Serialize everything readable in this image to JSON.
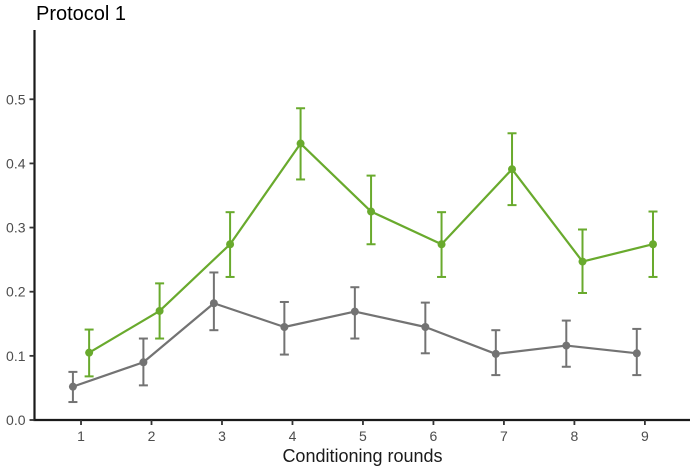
{
  "chart_data": {
    "type": "line",
    "title": "Protocol 1",
    "xlabel": "Conditioning rounds",
    "ylabel": "",
    "x": [
      1,
      2,
      3,
      4,
      5,
      6,
      7,
      8,
      9
    ],
    "xtick_labels": [
      "1",
      "2",
      "3",
      "4",
      "5",
      "6",
      "7",
      "8",
      "9"
    ],
    "yticks": [
      0.0,
      0.1,
      0.2,
      0.3,
      0.4,
      0.5
    ],
    "ytick_labels": [
      "0.0",
      "0.1",
      "0.2",
      "0.3",
      "0.4",
      "0.5"
    ],
    "xlim": [
      0.34,
      9.64
    ],
    "ylim": [
      0,
      0.608
    ],
    "grid": false,
    "legend": "none",
    "marker": "circle",
    "error_bars": true,
    "series": [
      {
        "name": "gray-series",
        "color": "#737373",
        "dodge": -0.115,
        "values": [
          0.052,
          0.09,
          0.182,
          0.145,
          0.169,
          0.145,
          0.103,
          0.116,
          0.104
        ],
        "lower": [
          0.028,
          0.054,
          0.14,
          0.102,
          0.127,
          0.104,
          0.07,
          0.083,
          0.07
        ],
        "upper": [
          0.075,
          0.127,
          0.23,
          0.184,
          0.207,
          0.183,
          0.14,
          0.155,
          0.142
        ]
      },
      {
        "name": "green-series",
        "color": "#69AA2D",
        "dodge": 0.115,
        "values": [
          0.105,
          0.17,
          0.274,
          0.431,
          0.325,
          0.274,
          0.391,
          0.247,
          0.274
        ],
        "lower": [
          0.068,
          0.127,
          0.223,
          0.375,
          0.274,
          0.223,
          0.335,
          0.198,
          0.223
        ],
        "upper": [
          0.141,
          0.213,
          0.324,
          0.486,
          0.381,
          0.324,
          0.447,
          0.297,
          0.325
        ]
      }
    ],
    "axis_color": "#1a1a1a",
    "tick_color": "#333333",
    "tick_label_color": "#4d4d4d",
    "title_color": "#000000",
    "background": "#ffffff"
  }
}
